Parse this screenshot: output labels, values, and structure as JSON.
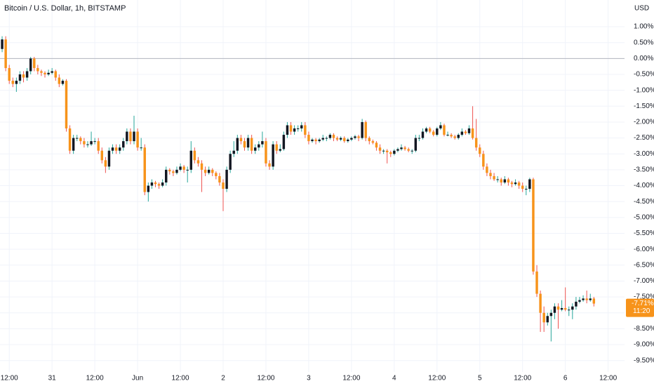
{
  "chart_data": {
    "type": "candlestick",
    "title": "Bitcoin / U.S. Dollar, 1h, BITSTAMP",
    "currency": "USD",
    "up_color": "#131722",
    "down_color": "#f7931a",
    "up_wick": "#26a69a",
    "down_wick": "#ef5350",
    "grid": true,
    "baseline": 0,
    "last_label": "-7.71%",
    "countdown": "11:20",
    "ylim": [
      1.84,
      -9.86
    ],
    "xlim": [
      -0.6,
      174.6
    ],
    "yticks": [
      {
        "value": 1,
        "label": "1.00%"
      },
      {
        "value": 0.5,
        "label": "0.50%"
      },
      {
        "value": 0,
        "label": "0.00%"
      },
      {
        "value": -0.5,
        "label": "-0.50%"
      },
      {
        "value": -1,
        "label": "-1.00%"
      },
      {
        "value": -1.5,
        "label": "-1.50%"
      },
      {
        "value": -2,
        "label": "-2.00%"
      },
      {
        "value": -2.5,
        "label": "-2.50%"
      },
      {
        "value": -3,
        "label": "-3.00%"
      },
      {
        "value": -3.5,
        "label": "-3.50%"
      },
      {
        "value": -4,
        "label": "-4.00%"
      },
      {
        "value": -4.5,
        "label": "-4.50%"
      },
      {
        "value": -5,
        "label": "-5.00%"
      },
      {
        "value": -5.5,
        "label": "-5.50%"
      },
      {
        "value": -6,
        "label": "-6.00%"
      },
      {
        "value": -6.5,
        "label": "-6.50%"
      },
      {
        "value": -7,
        "label": "-7.00%"
      },
      {
        "value": -7.5,
        "label": "-7.50%"
      },
      {
        "value": -8,
        "label": "-8.00%"
      },
      {
        "value": -8.5,
        "label": "-8.50%"
      },
      {
        "value": -9,
        "label": "-9.00%"
      },
      {
        "value": -9.5,
        "label": "-9.50%"
      }
    ],
    "xticks": [
      {
        "value": 2,
        "label": "12:00"
      },
      {
        "value": 14,
        "label": "31"
      },
      {
        "value": 26,
        "label": "12:00"
      },
      {
        "value": 38,
        "label": "Jun"
      },
      {
        "value": 50,
        "label": "12:00"
      },
      {
        "value": 62,
        "label": "2"
      },
      {
        "value": 74,
        "label": "12:00"
      },
      {
        "value": 86,
        "label": "3"
      },
      {
        "value": 98,
        "label": "12:00"
      },
      {
        "value": 110,
        "label": "4"
      },
      {
        "value": 122,
        "label": "12:00"
      },
      {
        "value": 134,
        "label": "5"
      },
      {
        "value": 146,
        "label": "12:00"
      },
      {
        "value": 158,
        "label": "6"
      },
      {
        "value": 170,
        "label": "12:00"
      }
    ],
    "ohlc": [
      [
        0.3,
        0.7,
        0.2,
        0.6
      ],
      [
        0.6,
        0.7,
        -0.4,
        -0.3
      ],
      [
        -0.3,
        -0.2,
        -0.8,
        -0.7
      ],
      [
        -0.7,
        -0.6,
        -0.9,
        -0.8
      ],
      [
        -0.8,
        -0.6,
        -1.05,
        -0.7
      ],
      [
        -0.7,
        -0.4,
        -0.8,
        -0.5
      ],
      [
        -0.5,
        -0.4,
        -0.75,
        -0.6
      ],
      [
        -0.6,
        -0.3,
        -0.7,
        -0.4
      ],
      [
        -0.4,
        0.05,
        -0.5,
        0.0
      ],
      [
        0.0,
        0.05,
        -0.4,
        -0.3
      ],
      [
        -0.3,
        -0.2,
        -0.5,
        -0.4
      ],
      [
        -0.4,
        -0.35,
        -0.55,
        -0.45
      ],
      [
        -0.45,
        -0.4,
        -0.6,
        -0.5
      ],
      [
        -0.5,
        -0.35,
        -0.55,
        -0.45
      ],
      [
        -0.45,
        -0.3,
        -0.5,
        -0.4
      ],
      [
        -0.4,
        -0.35,
        -0.7,
        -0.6
      ],
      [
        -0.6,
        -0.5,
        -0.9,
        -0.8
      ],
      [
        -0.8,
        -0.65,
        -0.85,
        -0.7
      ],
      [
        -0.7,
        -0.65,
        -2.3,
        -2.2
      ],
      [
        -2.2,
        -2.1,
        -3.0,
        -2.9
      ],
      [
        -2.9,
        -2.4,
        -3.0,
        -2.5
      ],
      [
        -2.5,
        -2.4,
        -2.6,
        -2.5
      ],
      [
        -2.5,
        -2.45,
        -2.7,
        -2.6
      ],
      [
        -2.6,
        -2.5,
        -2.8,
        -2.7
      ],
      [
        -2.7,
        -2.6,
        -2.8,
        -2.7
      ],
      [
        -2.7,
        -2.3,
        -2.75,
        -2.6
      ],
      [
        -2.6,
        -2.5,
        -2.7,
        -2.6
      ],
      [
        -2.6,
        -2.5,
        -3.0,
        -2.9
      ],
      [
        -2.9,
        -2.8,
        -3.3,
        -3.2
      ],
      [
        -3.2,
        -3.1,
        -3.6,
        -3.4
      ],
      [
        -3.4,
        -2.8,
        -3.5,
        -2.9
      ],
      [
        -2.9,
        -2.7,
        -3.0,
        -2.8
      ],
      [
        -2.8,
        -2.7,
        -3.0,
        -2.9
      ],
      [
        -2.9,
        -2.7,
        -3.0,
        -2.8
      ],
      [
        -2.8,
        -2.5,
        -2.9,
        -2.6
      ],
      [
        -2.6,
        -2.2,
        -2.7,
        -2.3
      ],
      [
        -2.3,
        -2.2,
        -2.7,
        -2.6
      ],
      [
        -2.6,
        -1.8,
        -2.7,
        -2.3
      ],
      [
        -2.3,
        -2.2,
        -2.9,
        -2.8
      ],
      [
        -2.8,
        -2.5,
        -2.9,
        -2.8
      ],
      [
        -2.8,
        -2.7,
        -4.3,
        -4.2
      ],
      [
        -4.2,
        -3.9,
        -4.5,
        -4.0
      ],
      [
        -4.0,
        -3.8,
        -4.1,
        -3.9
      ],
      [
        -3.9,
        -3.85,
        -4.05,
        -3.95
      ],
      [
        -3.95,
        -3.9,
        -4.1,
        -4.0
      ],
      [
        -4.0,
        -3.8,
        -4.05,
        -3.9
      ],
      [
        -3.9,
        -3.4,
        -4.0,
        -3.5
      ],
      [
        -3.5,
        -3.45,
        -3.65,
        -3.55
      ],
      [
        -3.55,
        -3.5,
        -3.7,
        -3.6
      ],
      [
        -3.6,
        -3.4,
        -3.65,
        -3.5
      ],
      [
        -3.5,
        -3.3,
        -3.55,
        -3.4
      ],
      [
        -3.4,
        -3.35,
        -3.6,
        -3.5
      ],
      [
        -3.5,
        -3.4,
        -3.9,
        -3.5
      ],
      [
        -3.5,
        -2.6,
        -3.6,
        -2.9
      ],
      [
        -2.9,
        -2.8,
        -3.3,
        -3.2
      ],
      [
        -3.2,
        -3.1,
        -3.4,
        -3.3
      ],
      [
        -3.3,
        -3.2,
        -4.2,
        -3.5
      ],
      [
        -3.5,
        -3.4,
        -3.7,
        -3.6
      ],
      [
        -3.6,
        -3.4,
        -3.65,
        -3.5
      ],
      [
        -3.5,
        -3.45,
        -3.7,
        -3.6
      ],
      [
        -3.6,
        -3.55,
        -3.8,
        -3.7
      ],
      [
        -3.7,
        -3.6,
        -4.0,
        -3.9
      ],
      [
        -3.9,
        -3.8,
        -4.8,
        -4.1
      ],
      [
        -4.1,
        -3.4,
        -4.2,
        -3.5
      ],
      [
        -3.5,
        -2.9,
        -3.6,
        -3.0
      ],
      [
        -3.0,
        -2.6,
        -3.1,
        -2.9
      ],
      [
        -2.9,
        -2.4,
        -3.0,
        -2.5
      ],
      [
        -2.5,
        -2.4,
        -2.7,
        -2.6
      ],
      [
        -2.6,
        -2.5,
        -2.9,
        -2.8
      ],
      [
        -2.8,
        -2.4,
        -2.9,
        -2.5
      ],
      [
        -2.5,
        -2.4,
        -3.0,
        -2.9
      ],
      [
        -2.9,
        -2.7,
        -3.0,
        -2.8
      ],
      [
        -2.8,
        -2.6,
        -2.9,
        -2.7
      ],
      [
        -2.7,
        -2.3,
        -2.8,
        -2.6
      ],
      [
        -2.6,
        -2.5,
        -3.4,
        -3.3
      ],
      [
        -3.3,
        -3.2,
        -3.5,
        -3.4
      ],
      [
        -3.4,
        -2.6,
        -3.5,
        -2.7
      ],
      [
        -2.7,
        -2.6,
        -3.0,
        -2.9
      ],
      [
        -2.9,
        -2.7,
        -2.95,
        -2.85
      ],
      [
        -2.85,
        -2.3,
        -2.9,
        -2.4
      ],
      [
        -2.4,
        -2.0,
        -2.5,
        -2.1
      ],
      [
        -2.1,
        -2.0,
        -2.4,
        -2.3
      ],
      [
        -2.3,
        -2.1,
        -2.4,
        -2.2
      ],
      [
        -2.2,
        -2.1,
        -2.3,
        -2.2
      ],
      [
        -2.2,
        -2.0,
        -2.3,
        -2.1
      ],
      [
        -2.1,
        -2.0,
        -2.5,
        -2.4
      ],
      [
        -2.4,
        -2.3,
        -2.7,
        -2.6
      ],
      [
        -2.6,
        -2.5,
        -2.65,
        -2.55
      ],
      [
        -2.55,
        -2.5,
        -2.7,
        -2.6
      ],
      [
        -2.6,
        -2.5,
        -2.65,
        -2.55
      ],
      [
        -2.55,
        -2.4,
        -2.6,
        -2.5
      ],
      [
        -2.5,
        -2.45,
        -2.6,
        -2.5
      ],
      [
        -2.5,
        -2.35,
        -2.55,
        -2.4
      ],
      [
        -2.4,
        -2.35,
        -2.6,
        -2.5
      ],
      [
        -2.5,
        -2.45,
        -2.6,
        -2.55
      ],
      [
        -2.55,
        -2.45,
        -2.6,
        -2.5
      ],
      [
        -2.5,
        -2.45,
        -2.65,
        -2.6
      ],
      [
        -2.6,
        -2.5,
        -2.65,
        -2.55
      ],
      [
        -2.55,
        -2.45,
        -2.6,
        -2.5
      ],
      [
        -2.5,
        -2.4,
        -2.55,
        -2.45
      ],
      [
        -2.45,
        -2.4,
        -2.6,
        -2.5
      ],
      [
        -2.5,
        -1.9,
        -2.55,
        -2.0
      ],
      [
        -2.0,
        -1.95,
        -2.6,
        -2.5
      ],
      [
        -2.5,
        -2.45,
        -2.7,
        -2.6
      ],
      [
        -2.6,
        -2.55,
        -2.7,
        -2.65
      ],
      [
        -2.65,
        -2.6,
        -2.9,
        -2.8
      ],
      [
        -2.8,
        -2.7,
        -3.0,
        -2.9
      ],
      [
        -2.9,
        -2.85,
        -3.0,
        -2.9
      ],
      [
        -2.9,
        -2.85,
        -3.3,
        -2.95
      ],
      [
        -2.95,
        -2.9,
        -3.1,
        -3.0
      ],
      [
        -3.0,
        -2.85,
        -3.05,
        -2.9
      ],
      [
        -2.9,
        -2.8,
        -2.95,
        -2.85
      ],
      [
        -2.85,
        -2.7,
        -2.9,
        -2.8
      ],
      [
        -2.8,
        -2.75,
        -2.9,
        -2.85
      ],
      [
        -2.85,
        -2.8,
        -2.95,
        -2.9
      ],
      [
        -2.9,
        -2.85,
        -3.0,
        -2.9
      ],
      [
        -2.9,
        -2.4,
        -2.95,
        -2.5
      ],
      [
        -2.5,
        -2.4,
        -2.6,
        -2.5
      ],
      [
        -2.5,
        -2.2,
        -2.55,
        -2.3
      ],
      [
        -2.3,
        -2.15,
        -2.35,
        -2.2
      ],
      [
        -2.2,
        -2.15,
        -2.35,
        -2.3
      ],
      [
        -2.3,
        -2.25,
        -2.45,
        -2.4
      ],
      [
        -2.4,
        -2.15,
        -2.45,
        -2.2
      ],
      [
        -2.2,
        -2.0,
        -2.25,
        -2.1
      ],
      [
        -2.1,
        -2.05,
        -2.45,
        -2.4
      ],
      [
        -2.4,
        -2.3,
        -2.45,
        -2.4
      ],
      [
        -2.4,
        -2.35,
        -2.5,
        -2.45
      ],
      [
        -2.45,
        -2.4,
        -2.55,
        -2.5
      ],
      [
        -2.5,
        -2.35,
        -2.55,
        -2.4
      ],
      [
        -2.4,
        -2.2,
        -2.45,
        -2.3
      ],
      [
        -2.3,
        -2.25,
        -2.4,
        -2.35
      ],
      [
        -2.35,
        -2.1,
        -2.4,
        -2.2
      ],
      [
        -2.2,
        -1.5,
        -2.55,
        -2.5
      ],
      [
        -2.5,
        -1.9,
        -2.9,
        -2.8
      ],
      [
        -2.8,
        -2.7,
        -3.1,
        -3.0
      ],
      [
        -3.0,
        -2.9,
        -3.5,
        -3.4
      ],
      [
        -3.4,
        -3.3,
        -3.7,
        -3.6
      ],
      [
        -3.6,
        -3.5,
        -3.8,
        -3.7
      ],
      [
        -3.7,
        -3.6,
        -3.85,
        -3.8
      ],
      [
        -3.8,
        -3.7,
        -3.9,
        -3.8
      ],
      [
        -3.8,
        -3.75,
        -4.0,
        -3.9
      ],
      [
        -3.9,
        -3.7,
        -3.95,
        -3.8
      ],
      [
        -3.8,
        -3.75,
        -4.0,
        -3.9
      ],
      [
        -3.9,
        -3.85,
        -4.05,
        -3.95
      ],
      [
        -3.95,
        -3.8,
        -4.0,
        -3.9
      ],
      [
        -3.9,
        -3.85,
        -4.1,
        -4.0
      ],
      [
        -4.0,
        -3.9,
        -4.2,
        -4.1
      ],
      [
        -4.1,
        -4.0,
        -4.3,
        -4.1
      ],
      [
        -4.1,
        -3.75,
        -4.2,
        -3.8
      ],
      [
        -3.8,
        -3.75,
        -6.8,
        -6.7
      ],
      [
        -6.7,
        -6.5,
        -7.5,
        -7.4
      ],
      [
        -7.4,
        -7.3,
        -8.6,
        -8.0
      ],
      [
        -8.0,
        -7.8,
        -8.6,
        -8.3
      ],
      [
        -8.3,
        -8.0,
        -8.4,
        -8.1
      ],
      [
        -8.1,
        -7.9,
        -8.9,
        -8.0
      ],
      [
        -8.0,
        -7.7,
        -8.2,
        -7.8
      ],
      [
        -7.8,
        -7.7,
        -8.5,
        -7.9
      ],
      [
        -7.9,
        -7.6,
        -7.95,
        -7.85
      ],
      [
        -7.85,
        -7.2,
        -7.95,
        -7.9
      ],
      [
        -7.9,
        -7.8,
        -8.1,
        -7.9
      ],
      [
        -7.9,
        -7.7,
        -8.2,
        -7.8
      ],
      [
        -7.8,
        -7.5,
        -7.9,
        -7.65
      ],
      [
        -7.65,
        -7.5,
        -7.7,
        -7.6
      ],
      [
        -7.6,
        -7.45,
        -7.65,
        -7.55
      ],
      [
        -7.55,
        -7.3,
        -7.7,
        -7.6
      ],
      [
        -7.6,
        -7.4,
        -7.65,
        -7.55
      ],
      [
        -7.55,
        -7.5,
        -7.8,
        -7.71
      ]
    ]
  }
}
